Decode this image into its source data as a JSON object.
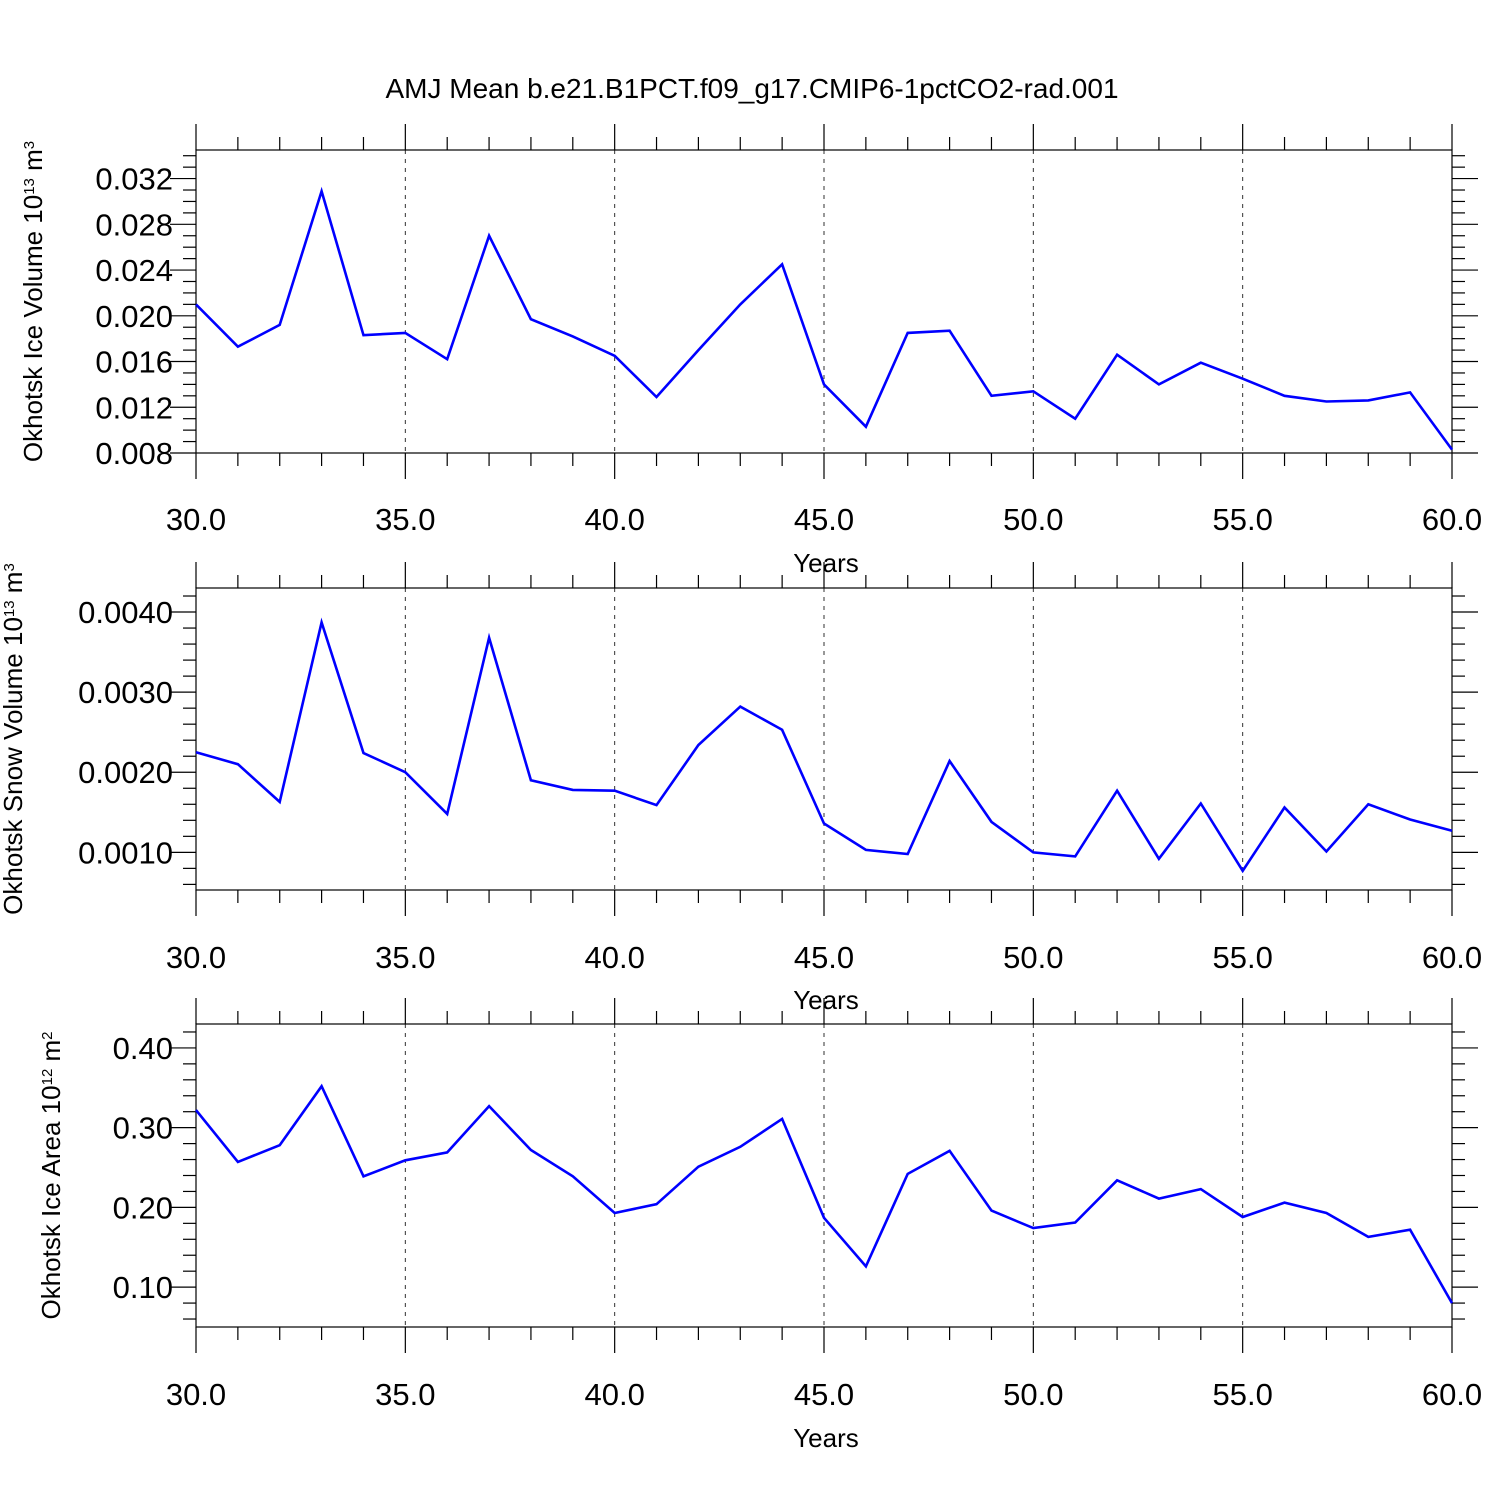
{
  "figure": {
    "title": "AMJ Mean b.e21.B1PCT.f09_g17.CMIP6-1pctCO2-rad.001"
  },
  "colors": {
    "line": "#0000ff",
    "axes": "#000000"
  },
  "chart_data": [
    {
      "type": "line",
      "xlabel": "Years",
      "ylabel": {
        "text": "Okhotsk Ice Volume 10",
        "exp": "13",
        "unit": " m",
        "unit_exp": "3"
      },
      "xlim": [
        30,
        60
      ],
      "ylim": [
        0.008,
        0.0345
      ],
      "grid": "x-dashed",
      "xticks": [
        30,
        35,
        40,
        45,
        50,
        55,
        60
      ],
      "xtick_labels": [
        "30.0",
        "35.0",
        "40.0",
        "45.0",
        "50.0",
        "55.0",
        "60.0"
      ],
      "yticks": [
        0.008,
        0.012,
        0.016,
        0.02,
        0.024,
        0.028,
        0.032
      ],
      "ytick_labels": [
        "0.008",
        "0.012",
        "0.016",
        "0.020",
        "0.024",
        "0.028",
        "0.032"
      ],
      "yminor_step": 0.001,
      "x": [
        30,
        31,
        32,
        33,
        34,
        35,
        36,
        37,
        38,
        39,
        40,
        41,
        42,
        43,
        44,
        45,
        46,
        47,
        48,
        49,
        50,
        51,
        52,
        53,
        54,
        55,
        56,
        57,
        58,
        59,
        60
      ],
      "values": [
        0.021,
        0.0173,
        0.0192,
        0.0309,
        0.0183,
        0.0185,
        0.0162,
        0.027,
        0.0197,
        0.0182,
        0.0165,
        0.0129,
        0.017,
        0.021,
        0.0245,
        0.014,
        0.0103,
        0.0185,
        0.0187,
        0.013,
        0.0134,
        0.011,
        0.0166,
        0.014,
        0.0159,
        0.0145,
        0.013,
        0.0125,
        0.0126,
        0.0133,
        0.0083
      ]
    },
    {
      "type": "line",
      "xlabel": "Years",
      "ylabel": {
        "text": "Okhotsk Snow Volume 10",
        "exp": "13",
        "unit": " m",
        "unit_exp": "3"
      },
      "xlim": [
        30,
        60
      ],
      "ylim": [
        0.00053,
        0.0043
      ],
      "grid": "x-dashed",
      "xticks": [
        30,
        35,
        40,
        45,
        50,
        55,
        60
      ],
      "xtick_labels": [
        "30.0",
        "35.0",
        "40.0",
        "45.0",
        "50.0",
        "55.0",
        "60.0"
      ],
      "yticks": [
        0.001,
        0.002,
        0.003,
        0.004
      ],
      "ytick_labels": [
        "0.0010",
        "0.0020",
        "0.0030",
        "0.0040"
      ],
      "yminor_step": 0.0002,
      "x": [
        30,
        31,
        32,
        33,
        34,
        35,
        36,
        37,
        38,
        39,
        40,
        41,
        42,
        43,
        44,
        45,
        46,
        47,
        48,
        49,
        50,
        51,
        52,
        53,
        54,
        55,
        56,
        57,
        58,
        59,
        60
      ],
      "values": [
        0.00225,
        0.0021,
        0.00163,
        0.00387,
        0.00224,
        0.002,
        0.00148,
        0.00368,
        0.0019,
        0.00178,
        0.00177,
        0.00159,
        0.00234,
        0.00282,
        0.00253,
        0.00136,
        0.00103,
        0.00098,
        0.00214,
        0.00138,
        0.001,
        0.00095,
        0.00177,
        0.00092,
        0.00161,
        0.00077,
        0.00156,
        0.00101,
        0.0016,
        0.00141,
        0.00127
      ]
    },
    {
      "type": "line",
      "xlabel": "Years",
      "ylabel": {
        "text": "Okhotsk Ice Area 10",
        "exp": "12",
        "unit": " m",
        "unit_exp": "2"
      },
      "xlim": [
        30,
        60
      ],
      "ylim": [
        0.05,
        0.43
      ],
      "grid": "x-dashed",
      "xticks": [
        30,
        35,
        40,
        45,
        50,
        55,
        60
      ],
      "xtick_labels": [
        "30.0",
        "35.0",
        "40.0",
        "45.0",
        "50.0",
        "55.0",
        "60.0"
      ],
      "yticks": [
        0.1,
        0.2,
        0.3,
        0.4
      ],
      "ytick_labels": [
        "0.10",
        "0.20",
        "0.30",
        "0.40"
      ],
      "yminor_step": 0.02,
      "x": [
        30,
        31,
        32,
        33,
        34,
        35,
        36,
        37,
        38,
        39,
        40,
        41,
        42,
        43,
        44,
        45,
        46,
        47,
        48,
        49,
        50,
        51,
        52,
        53,
        54,
        55,
        56,
        57,
        58,
        59,
        60
      ],
      "values": [
        0.322,
        0.257,
        0.278,
        0.352,
        0.239,
        0.259,
        0.269,
        0.327,
        0.272,
        0.239,
        0.193,
        0.204,
        0.251,
        0.276,
        0.311,
        0.187,
        0.126,
        0.242,
        0.271,
        0.196,
        0.174,
        0.181,
        0.234,
        0.211,
        0.223,
        0.188,
        0.206,
        0.193,
        0.163,
        0.172,
        0.08
      ]
    }
  ]
}
